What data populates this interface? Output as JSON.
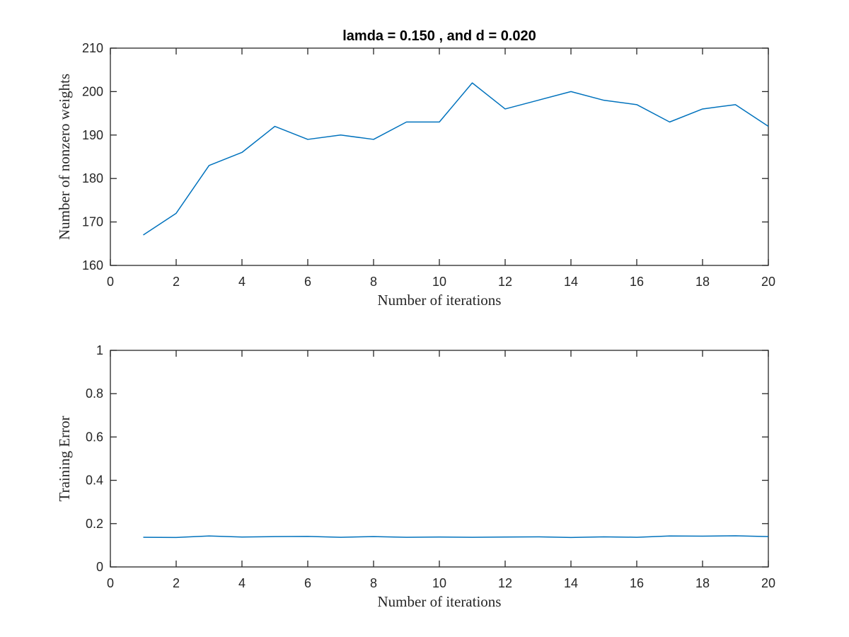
{
  "chart_data": [
    {
      "type": "line",
      "title": "lamda = 0.150 , and d = 0.020",
      "xlabel": "Number of iterations",
      "ylabel": "Number of nonzero weights",
      "xlim": [
        0,
        20
      ],
      "ylim": [
        160,
        210
      ],
      "xticks": [
        0,
        2,
        4,
        6,
        8,
        10,
        12,
        14,
        16,
        18,
        20
      ],
      "yticks": [
        160,
        170,
        180,
        190,
        200,
        210
      ],
      "grid": false,
      "color": "#0072BD",
      "series": [
        {
          "x": [
            1,
            2,
            3,
            4,
            5,
            6,
            7,
            8,
            9,
            10,
            11,
            12,
            13,
            14,
            15,
            16,
            17,
            18,
            19,
            20
          ],
          "y": [
            167,
            172,
            183,
            186,
            192,
            189,
            190,
            189,
            193,
            193,
            202,
            196,
            198,
            200,
            198,
            197,
            193,
            196,
            197,
            192
          ]
        }
      ]
    },
    {
      "type": "line",
      "title": "",
      "xlabel": "Number of iterations",
      "ylabel": "Training Error",
      "xlim": [
        0,
        20
      ],
      "ylim": [
        0,
        1
      ],
      "xticks": [
        0,
        2,
        4,
        6,
        8,
        10,
        12,
        14,
        16,
        18,
        20
      ],
      "yticks": [
        0,
        0.2,
        0.4,
        0.6,
        0.8,
        1
      ],
      "yticklabels": [
        "0",
        "0.2",
        "0.4",
        "0.6",
        "0.8",
        "1"
      ],
      "grid": false,
      "color": "#0072BD",
      "series": [
        {
          "x": [
            1,
            2,
            3,
            4,
            5,
            6,
            7,
            8,
            9,
            10,
            11,
            12,
            13,
            14,
            15,
            16,
            17,
            18,
            19,
            20
          ],
          "y": [
            0.137,
            0.136,
            0.143,
            0.138,
            0.14,
            0.141,
            0.137,
            0.14,
            0.137,
            0.138,
            0.137,
            0.138,
            0.139,
            0.136,
            0.139,
            0.137,
            0.143,
            0.142,
            0.144,
            0.14
          ]
        }
      ]
    }
  ]
}
